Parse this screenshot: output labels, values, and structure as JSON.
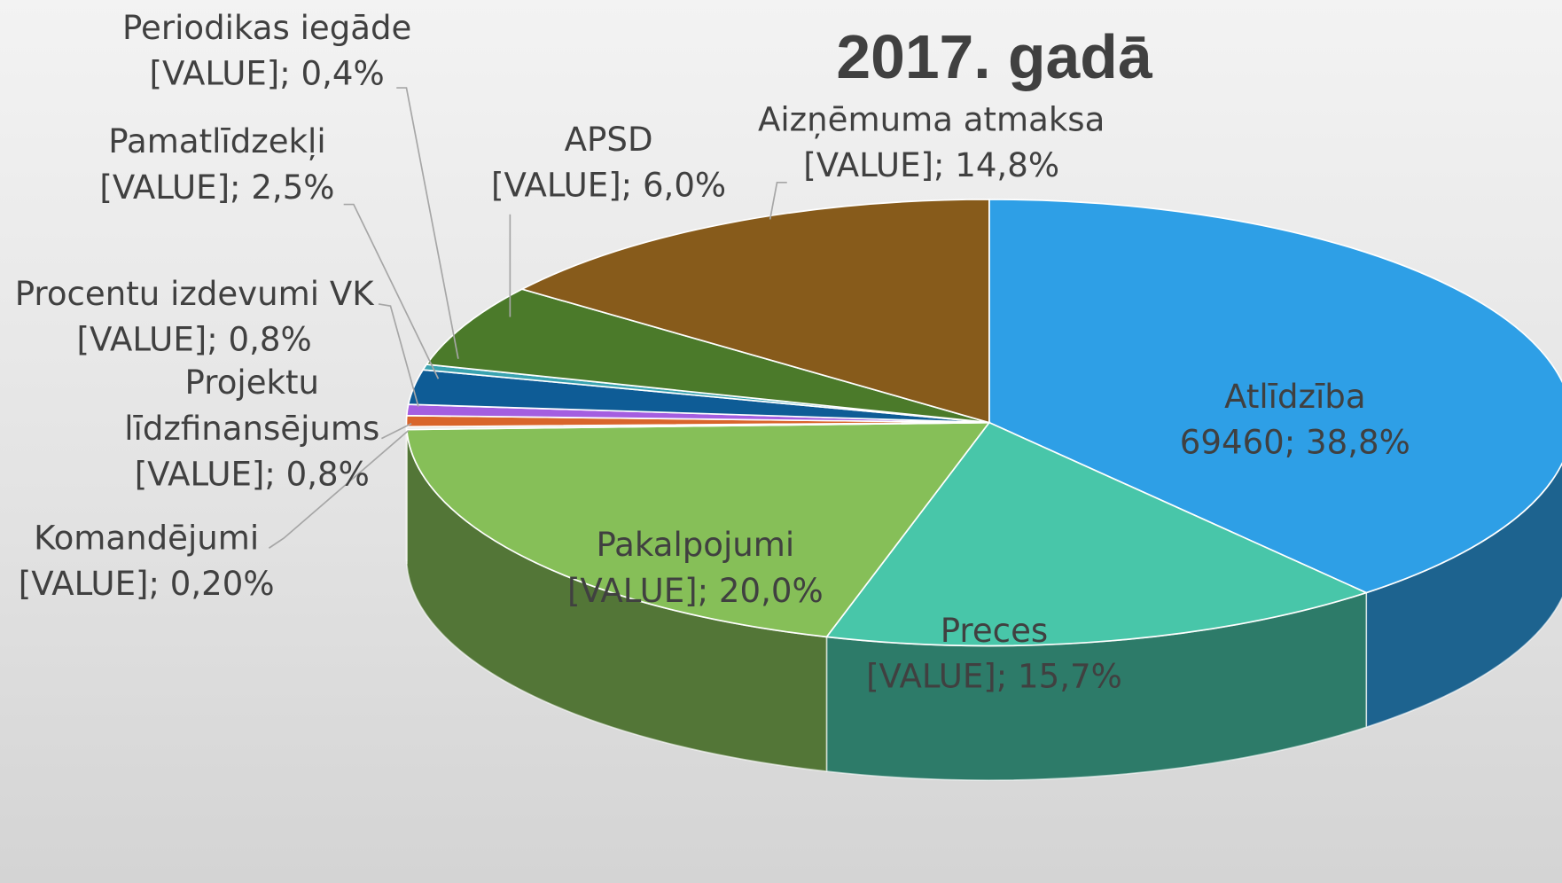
{
  "chart_data": {
    "type": "pie",
    "title": "2017. gadā",
    "categories": [
      "Atlīdzība",
      "Preces",
      "Pakalpojumi",
      "Komandējumi",
      "Projektu līdzfinansējums",
      "Procentu izdevumi VK",
      "Pamatlīdzekļi",
      "Periodikas iegāde",
      "APSD",
      "Aizņēmuma atmaksa"
    ],
    "values": [
      38.8,
      15.7,
      20.0,
      0.2,
      0.8,
      0.8,
      2.5,
      0.4,
      6.0,
      14.8
    ],
    "value_labels": [
      "69460; 38,8%",
      "[VALUE]; 15,7%",
      "[VALUE]; 20,0%",
      "[VALUE]; 0,20%",
      "[VALUE]; 0,8%",
      "[VALUE]; 0,8%",
      "[VALUE]; 2,5%",
      "[VALUE]; 0,4%",
      "[VALUE]; 6,0%",
      "[VALUE]; 14,8%"
    ],
    "colors": [
      "#2e9fe6",
      "#48c6a9",
      "#86bf58",
      "#e6e6e6",
      "#d9652b",
      "#a45ee0",
      "#0e5c96",
      "#3aa3b0",
      "#4b7a2a",
      "#875b1b"
    ]
  }
}
